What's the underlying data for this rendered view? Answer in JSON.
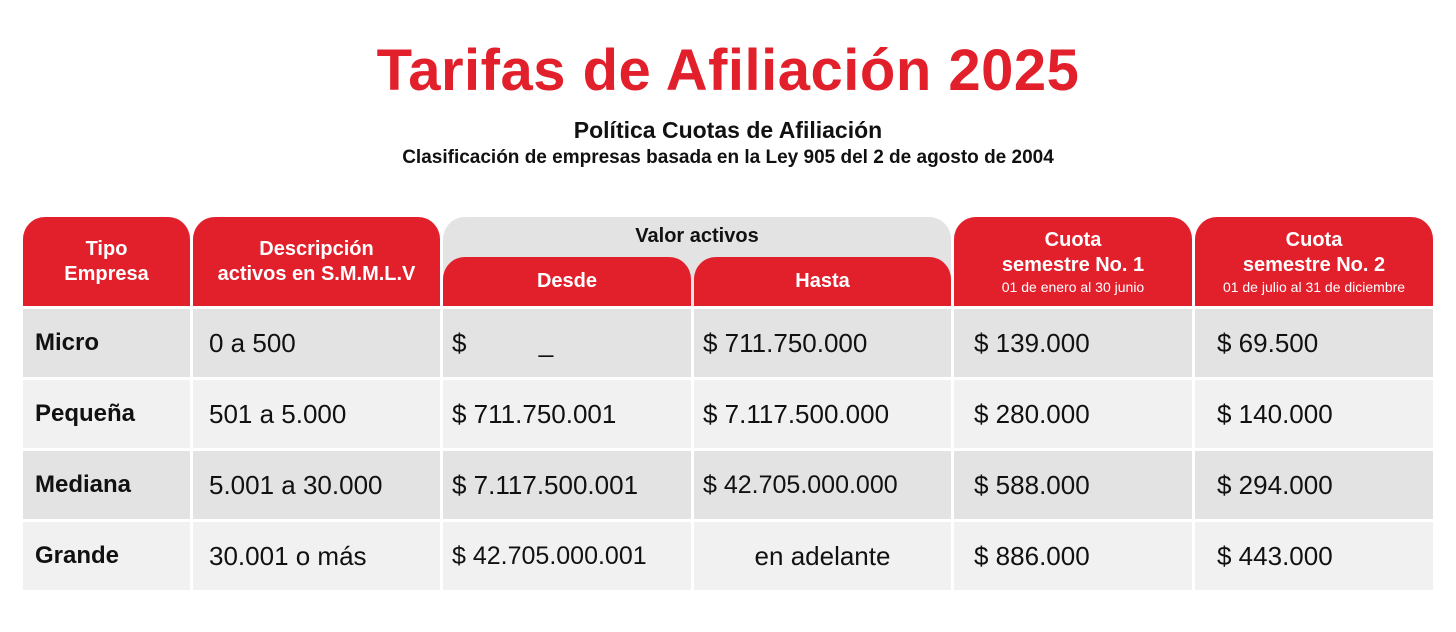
{
  "title": "Tarifas de Afiliación 2025",
  "subtitle": "Política Cuotas de Afiliación",
  "subtitle2": "Clasificación de empresas basada en la Ley 905 del 2 de agosto de 2004",
  "colors": {
    "accent": "#e2202c",
    "header_grey": "#e3e3e3",
    "row_dark": "#e3e3e3",
    "row_light": "#f1f1f1"
  },
  "headers": {
    "tipo": [
      "Tipo",
      "Empresa"
    ],
    "descripcion": [
      "Descripción",
      "activos en S.M.M.L.V"
    ],
    "valor_activos": "Valor activos",
    "desde": "Desde",
    "hasta": "Hasta",
    "cuota1": [
      "Cuota",
      "semestre No. 1",
      "01 de enero al 30 junio"
    ],
    "cuota2": [
      "Cuota",
      "semestre No. 2",
      "01 de julio al 31 de diciembre"
    ]
  },
  "rows": [
    {
      "tipo": "Micro",
      "descripcion": "0 a 500",
      "desde": "$          _",
      "hasta": "$ 711.750.000",
      "cuota1": "$ 139.000",
      "cuota2": "$ 69.500"
    },
    {
      "tipo": "Pequeña",
      "descripcion": "501 a 5.000",
      "desde": "$ 711.750.001",
      "hasta": "$ 7.117.500.000",
      "cuota1": "$ 280.000",
      "cuota2": "$ 140.000"
    },
    {
      "tipo": "Mediana",
      "descripcion": "5.001 a 30.000",
      "desde": "$ 7.117.500.001",
      "hasta": "$ 42.705.000.000",
      "cuota1": "$ 588.000",
      "cuota2": "$ 294.000"
    },
    {
      "tipo": "Grande",
      "descripcion": "30.001 o más",
      "desde": "$ 42.705.000.001",
      "hasta": "en adelante",
      "cuota1": "$ 886.000",
      "cuota2": "$ 443.000"
    }
  ]
}
